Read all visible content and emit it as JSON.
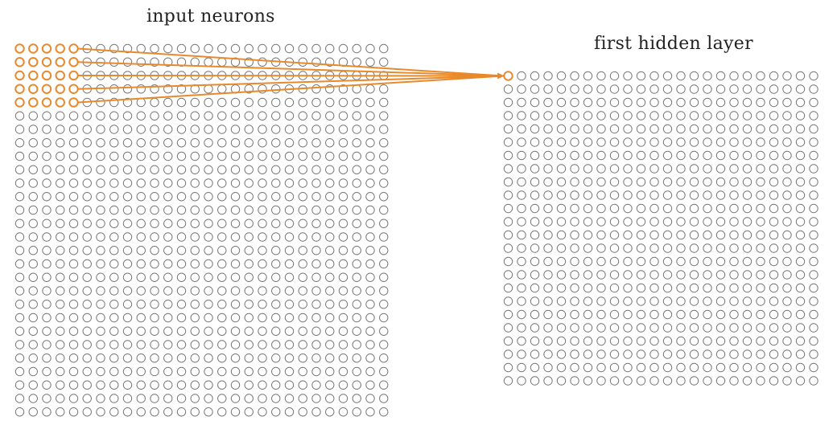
{
  "titles": {
    "input": "input neurons",
    "hidden": "first hidden layer"
  },
  "input_layer": {
    "rows": 28,
    "cols": 28,
    "receptive_field": {
      "rows": 5,
      "cols": 5
    }
  },
  "hidden_layer": {
    "rows": 24,
    "cols": 24,
    "highlighted": {
      "row": 0,
      "col": 0
    }
  },
  "colors": {
    "neuron": "#777777",
    "highlight": "#e8892b",
    "text": "#222222"
  },
  "arrowhead": "arrow-icon"
}
